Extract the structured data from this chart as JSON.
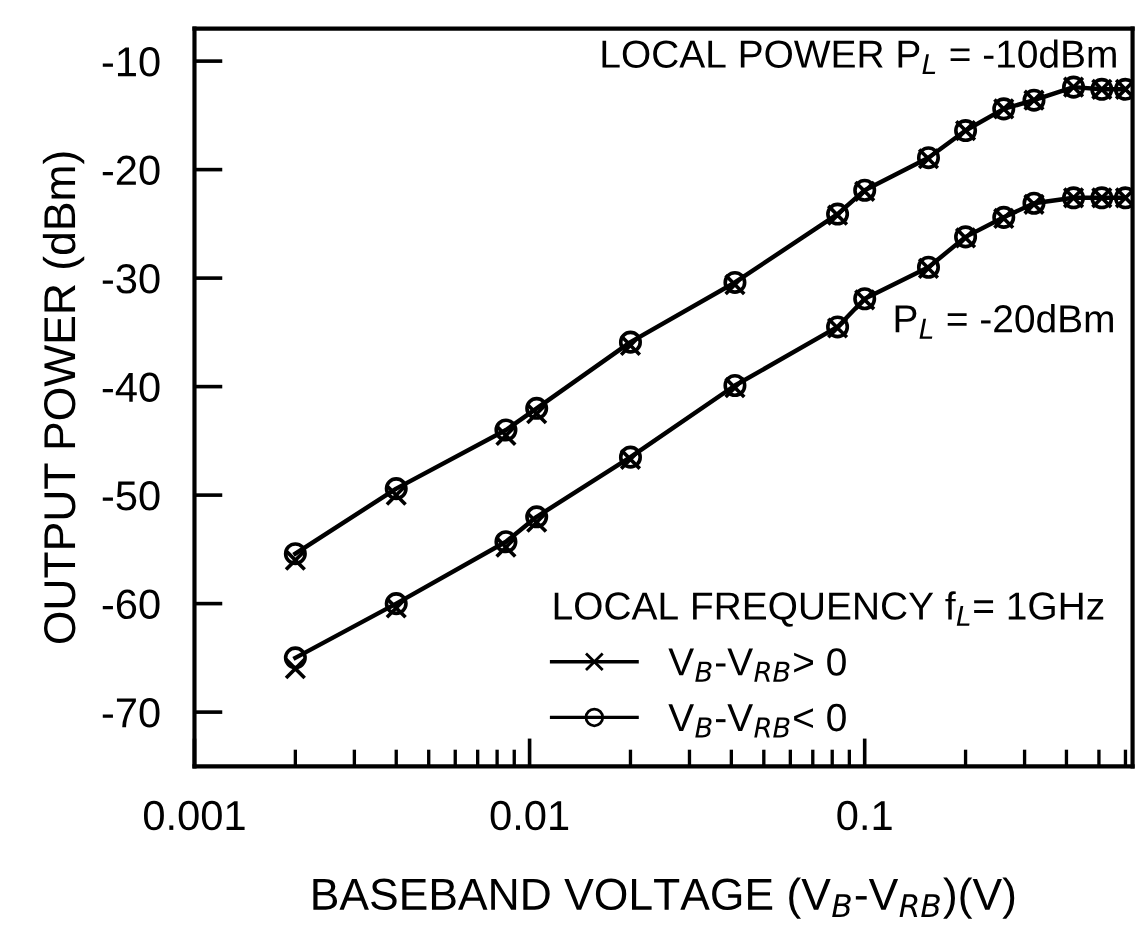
{
  "chart_data": {
    "type": "line",
    "xlabel": "BASEBAND VOLTAGE (V$_{B}$-V$_{RB}$)(V)",
    "ylabel": "OUTPUT POWER (dBm)",
    "legend_title": "LOCAL FREQUENCY f$_{L}$= 1GHz",
    "log": "x",
    "xlim": [
      0.001,
      0.63
    ],
    "xticks": [
      0.001,
      0.01,
      0.1
    ],
    "ylim": [
      -75,
      -7
    ],
    "yticks": [
      -10,
      -20,
      -30,
      -40,
      -50,
      -60,
      -70
    ],
    "grid": false,
    "legend": "bottom right",
    "annotations": [
      "LOCAL POWER P$_{L}$ = -10dBm",
      {
        "text": "P$_{L}$ = -20dBm",
        "x": 0.1,
        "y": -31.9
      }
    ],
    "series": [
      {
        "name": "V$_{B}$-V$_{RB}$> 0",
        "type": "scatter",
        "color": "#000000",
        "marker": "cross",
        "x": [
          0.002,
          0.004,
          0.0085,
          0.0105,
          0.02,
          0.041,
          0.083,
          0.1,
          0.155,
          0.2,
          0.26,
          0.32,
          0.42,
          0.51,
          0.6
        ],
        "values": [
          -56,
          -50,
          -44.5,
          -42.5,
          -36.2,
          -30.6,
          -24.2,
          -22,
          -19,
          -16.4,
          -14.4,
          -13.6,
          -12.4,
          -12.6,
          -12.6
        ]
      },
      {
        "name": "V$_{B}$-V$_{RB}$< 0",
        "color": "#000000",
        "marker": "circle",
        "line_style": "solid",
        "x": [
          0.002,
          0.004,
          0.0085,
          0.0105,
          0.02,
          0.041,
          0.083,
          0.1,
          0.155,
          0.2,
          0.26,
          0.32,
          0.42,
          0.51,
          0.6
        ],
        "values": [
          -55.4,
          -49.4,
          -44,
          -42,
          -35.9,
          -30.4,
          -24.1,
          -21.9,
          -18.9,
          -16.4,
          -14.4,
          -13.6,
          -12.4,
          -12.6,
          -12.6
        ]
      },
      {
        "type": "scatter",
        "color": "#000000",
        "marker": "cross",
        "x": [
          0.002,
          0.004,
          0.0085,
          0.0105,
          0.02,
          0.041,
          0.083,
          0.1,
          0.155,
          0.2,
          0.26,
          0.32,
          0.42,
          0.51,
          0.6
        ],
        "values": [
          -66,
          -60.4,
          -54.8,
          -52.5,
          -46.7,
          -40.1,
          -34.6,
          -32,
          -29.1,
          -26.3,
          -24.5,
          -23.2,
          -22.6,
          -22.6,
          -22.6
        ]
      },
      {
        "color": "#000000",
        "marker": "circle",
        "line_style": "solid",
        "x": [
          0.002,
          0.004,
          0.0085,
          0.0105,
          0.02,
          0.041,
          0.083,
          0.1,
          0.155,
          0.2,
          0.26,
          0.32,
          0.42,
          0.51,
          0.6
        ],
        "values": [
          -65,
          -60,
          -54.3,
          -52,
          -46.5,
          -39.9,
          -34.5,
          -31.9,
          -29,
          -26.2,
          -24.4,
          -23.1,
          -22.6,
          -22.6,
          -22.6
        ]
      }
    ]
  }
}
